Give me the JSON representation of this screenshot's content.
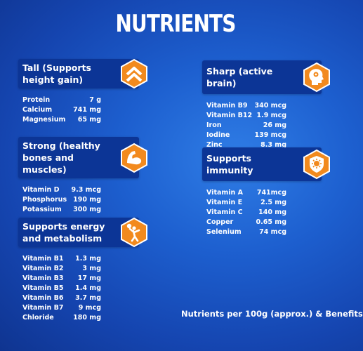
{
  "title": "NUTRIENTS",
  "footer": "Nutrients per 100g (approx.) & Benefits",
  "colors": {
    "badge": "#f28a1e",
    "header": "#0c3596",
    "background": "#1d5fcf"
  },
  "cards": [
    {
      "title": "Tall (Supports height gain)",
      "icon": "chevron-up-icon",
      "rows": [
        {
          "name": "Protein",
          "value": "7 g"
        },
        {
          "name": "Calcium",
          "value": "741 mg"
        },
        {
          "name": "Magnesium",
          "value": "65 mg"
        }
      ]
    },
    {
      "title": "Strong (healthy bones and muscles)",
      "icon": "flexed-arm-icon",
      "rows": [
        {
          "name": "Vitamin D",
          "value": "9.3 mcg"
        },
        {
          "name": "Phosphorus",
          "value": "190 mg"
        },
        {
          "name": "Potassium",
          "value": "300 mg"
        }
      ]
    },
    {
      "title": "Supports energy and metabolism",
      "icon": "player-ball-icon",
      "rows": [
        {
          "name": "Vitamin B1",
          "value": "1.3 mg"
        },
        {
          "name": "Vitamin B2",
          "value": "3 mg"
        },
        {
          "name": "Vitamin B3",
          "value": "17 mg"
        },
        {
          "name": "Vitamin B5",
          "value": "1.4 mg"
        },
        {
          "name": "Vitamin B6",
          "value": "3.7 mg"
        },
        {
          "name": "Vitamin B7",
          "value": "9 mcg"
        },
        {
          "name": "Chloride",
          "value": "180 mg"
        }
      ]
    },
    {
      "title": "Sharp (active brain)",
      "icon": "head-brain-icon",
      "rows": [
        {
          "name": "Vitamin B9",
          "value": "340 mcg"
        },
        {
          "name": "Vitamin B12",
          "value": "1.9 mcg"
        },
        {
          "name": "Iron",
          "value": "26 mg"
        },
        {
          "name": "Iodine",
          "value": "139 mcg"
        },
        {
          "name": "Zinc",
          "value": "8.3 mg"
        }
      ]
    },
    {
      "title": "Supports immunity",
      "icon": "immunity-shield-icon",
      "rows": [
        {
          "name": "Vitamin A",
          "value": "741mcg"
        },
        {
          "name": "Vitamin E",
          "value": "2.5 mg"
        },
        {
          "name": "Vitamin C",
          "value": "140 mg"
        },
        {
          "name": "Copper",
          "value": "0.65 mg"
        },
        {
          "name": "Selenium",
          "value": "74 mcg"
        }
      ]
    }
  ]
}
